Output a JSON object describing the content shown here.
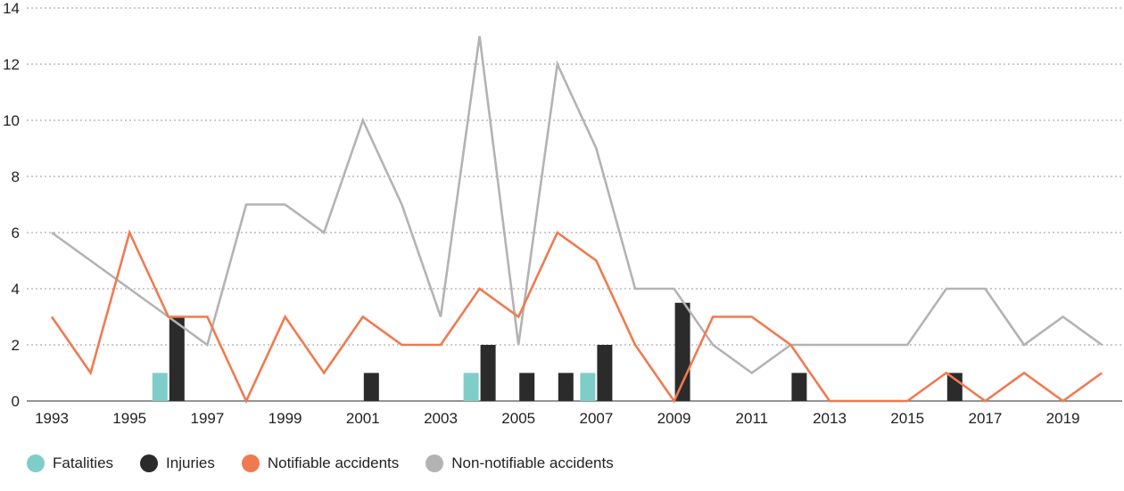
{
  "chart_data": {
    "type": "line",
    "x": [
      1993,
      1994,
      1995,
      1996,
      1997,
      1998,
      1999,
      2000,
      2001,
      2002,
      2003,
      2004,
      2005,
      2006,
      2007,
      2008,
      2009,
      2010,
      2011,
      2012,
      2013,
      2014,
      2015,
      2016,
      2017,
      2018,
      2019,
      2020
    ],
    "x_tick_labels": [
      "1993",
      "1995",
      "1997",
      "1999",
      "2001",
      "2003",
      "2005",
      "2007",
      "2009",
      "2011",
      "2013",
      "2015",
      "2017",
      "2019"
    ],
    "y_tick_labels": [
      "0",
      "2",
      "4",
      "6",
      "8",
      "10",
      "12",
      "14"
    ],
    "ylim": [
      0,
      14
    ],
    "grid": "horizontal dotted",
    "legend_position": "bottom-left",
    "series": [
      {
        "name": "Fatalities",
        "kind": "bar",
        "color": "#7ecdc8",
        "values": [
          0,
          0,
          0,
          1,
          0,
          0,
          0,
          0,
          0,
          0,
          0,
          1,
          0,
          0,
          1,
          0,
          0,
          0,
          0,
          0,
          0,
          0,
          0,
          0,
          0,
          0,
          0,
          0
        ]
      },
      {
        "name": "Injuries",
        "kind": "bar",
        "color": "#2b2b2b",
        "values": [
          0,
          0,
          0,
          3,
          0,
          0,
          0,
          0,
          1,
          0,
          0,
          2,
          1,
          1,
          2,
          0,
          3.5,
          0,
          0,
          1,
          0,
          0,
          0,
          1,
          0,
          0,
          0,
          0
        ]
      },
      {
        "name": "Notifiable accidents",
        "kind": "line",
        "color": "#f07a50",
        "values": [
          3,
          1,
          6,
          3,
          3,
          0,
          3,
          1,
          3,
          2,
          2,
          4,
          3,
          6,
          5,
          2,
          0,
          3,
          3,
          2,
          0,
          0,
          0,
          1,
          0,
          1,
          0,
          1
        ]
      },
      {
        "name": "Non-notifiable accidents",
        "kind": "line",
        "color": "#b3b3b3",
        "values": [
          6,
          5,
          4,
          3,
          2,
          7,
          7,
          6,
          10,
          7,
          3,
          13,
          2,
          12,
          9,
          4,
          4,
          2,
          1,
          2,
          2,
          2,
          2,
          4,
          4,
          2,
          3,
          2
        ]
      }
    ]
  }
}
